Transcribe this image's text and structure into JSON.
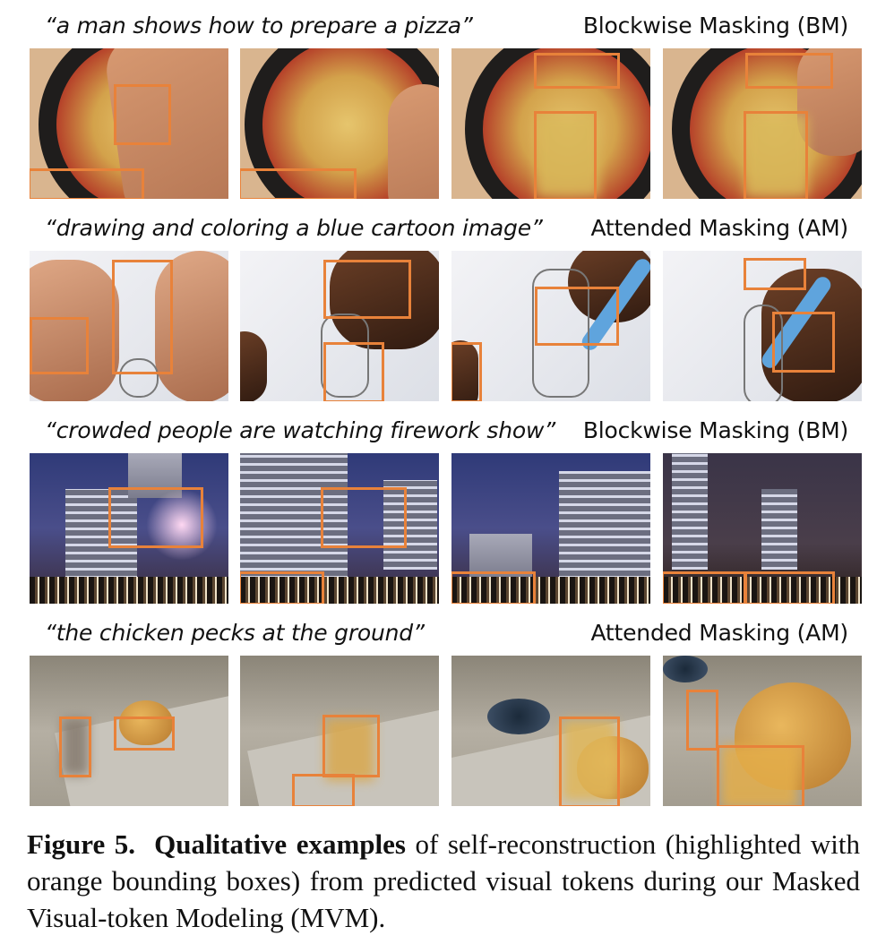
{
  "rows": [
    {
      "caption": "“a man shows how to prepare a pizza”",
      "method": "Blockwise Masking (BM)"
    },
    {
      "caption": "“drawing and coloring a blue cartoon image”",
      "method": "Attended Masking (AM)"
    },
    {
      "caption": "“crowded people are watching firework show”",
      "method": "Blockwise Masking (BM)"
    },
    {
      "caption": "“the chicken pecks at the ground”",
      "method": "Attended Masking (AM)"
    }
  ],
  "figure": {
    "label": "Figure 5.",
    "bold_phrase": "Qualitative examples",
    "text": "of self-reconstruction (highlighted with orange bounding boxes) from predicted visual tokens during our Masked Visual-token Modeling (MVM)."
  },
  "colors": {
    "highlight_box": "#e8823a"
  }
}
